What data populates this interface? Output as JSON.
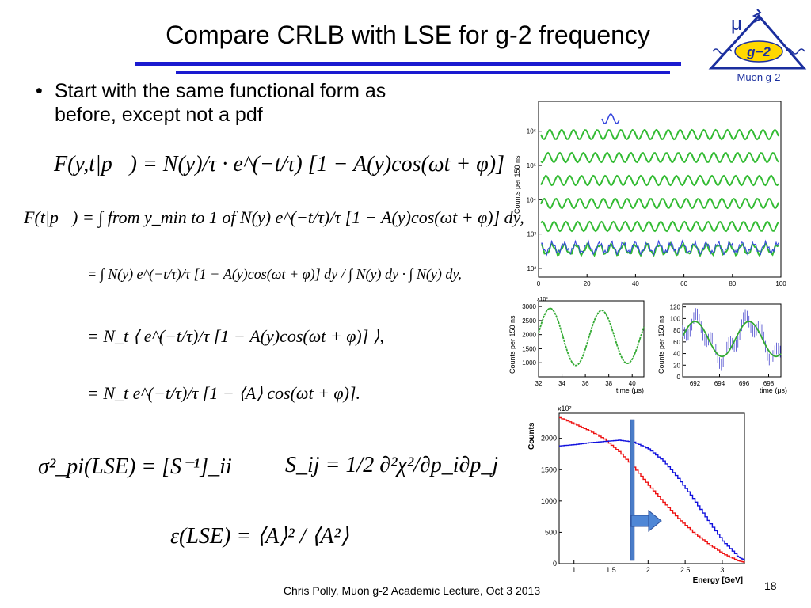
{
  "title": "Compare CRLB with LSE for g-2 frequency",
  "logo": {
    "mu": "μ",
    "badge": "g−2",
    "caption": "Muon g-2"
  },
  "bullet": "Start with the same functional form as before, except not a pdf",
  "equations": {
    "model": "F(y,t|p⃗) = N(y)/τ · e^(−t/τ) [1 − A(y)cos(ωt + φ)]",
    "line1": "F(t|p⃗) = ∫ from y_min to 1 of N(y) e^(−t/τ)/τ [1 − A(y)cos(ωt + φ)] dy,",
    "line2": "= ∫ N(y) e^(−t/τ)/τ [1 − A(y)cos(ωt + φ)] dy / ∫ N(y) dy · ∫ N(y) dy,",
    "line3": "= N_t ⟨ e^(−t/τ)/τ [1 − A(y)cos(ωt + φ)] ⟩,",
    "line4": "= N_t e^(−t/τ)/τ [1 − ⟨A⟩ cos(ωt + φ)].",
    "sigma": "σ²_pi(LSE) = [S⁻¹]_ii",
    "sij": "S_ij = 1/2 ∂²χ²/∂p_i∂p_j",
    "epsilon": "ε(LSE) = ⟨A⟩² / ⟨A²⟩"
  },
  "footer": "Chris Polly, Muon g-2 Academic Lecture, Oct 3 2013",
  "slide_number": "18",
  "chart_data": [
    {
      "type": "line",
      "ylabel": "Counts per 150 ns",
      "xlabel": "",
      "x_ticks": [
        "0",
        "20",
        "40",
        "60",
        "80",
        "100"
      ],
      "y_ticks": [
        "10²",
        "10³",
        "10⁴",
        "10⁵",
        "10⁶"
      ],
      "xlim": [
        0,
        100
      ],
      "y_scale": "log",
      "series_colors": [
        "#33bb33",
        "#3344dd"
      ]
    },
    {
      "type": "line",
      "ylabel": "Counts per 150 ns",
      "xlabel": "time (μs)",
      "exponent_label": "x10³",
      "x_ticks": [
        "32",
        "34",
        "36",
        "38",
        "40"
      ],
      "y_ticks": [
        "1000",
        "1500",
        "2000",
        "2500",
        "3000"
      ],
      "xlim": [
        32,
        41
      ],
      "ylim": [
        500,
        3200
      ]
    },
    {
      "type": "line",
      "ylabel": "Counts per 150 ns",
      "xlabel": "time (μs)",
      "x_ticks": [
        "692",
        "694",
        "696",
        "698"
      ],
      "y_ticks": [
        "0",
        "20",
        "40",
        "60",
        "80",
        "100",
        "120"
      ],
      "xlim": [
        691,
        699
      ],
      "ylim": [
        0,
        125
      ]
    },
    {
      "type": "line",
      "ylabel": "Counts",
      "xlabel": "Energy [GeV]",
      "exponent_label": "x10²",
      "x_ticks": [
        "1",
        "1.5",
        "2",
        "2.5",
        "3"
      ],
      "y_ticks": [
        "0",
        "500",
        "1000",
        "1500",
        "2000"
      ],
      "xlim": [
        0.8,
        3.3
      ],
      "ylim": [
        0,
        2400
      ],
      "x": [
        0.8,
        1.0,
        1.2,
        1.4,
        1.6,
        1.8,
        2.0,
        2.2,
        2.4,
        2.6,
        2.8,
        3.0,
        3.2,
        3.3
      ],
      "series": [
        {
          "color": "#ee1111",
          "values": [
            2330,
            2230,
            2120,
            1990,
            1790,
            1540,
            1250,
            980,
            720,
            500,
            320,
            160,
            50,
            20
          ]
        },
        {
          "color": "#1111dd",
          "values": [
            1880,
            1900,
            1930,
            1950,
            1970,
            1940,
            1830,
            1640,
            1360,
            1040,
            690,
            360,
            120,
            50
          ]
        }
      ]
    }
  ]
}
